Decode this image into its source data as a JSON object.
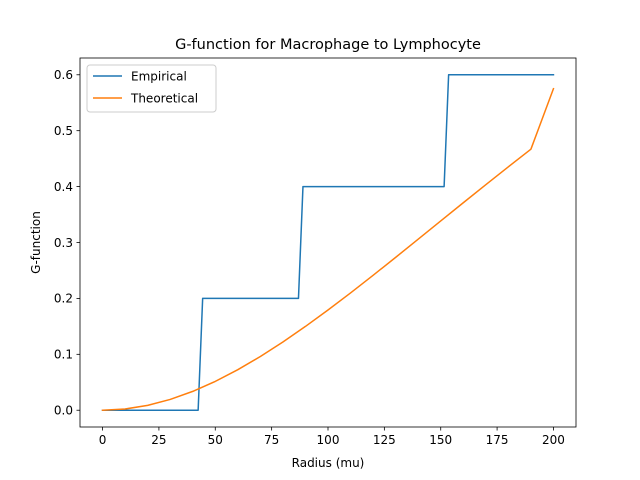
{
  "chart_data": {
    "type": "line",
    "title": "G-function for Macrophage to Lymphocyte",
    "xlabel": "Radius (mu)",
    "ylabel": "G-function",
    "xlim": [
      -10,
      210
    ],
    "ylim": [
      -0.03,
      0.63
    ],
    "xticks": [
      0,
      25,
      50,
      75,
      100,
      125,
      150,
      175,
      200
    ],
    "xtick_labels": [
      "0",
      "25",
      "50",
      "75",
      "100",
      "125",
      "150",
      "175",
      "200"
    ],
    "yticks": [
      0.0,
      0.1,
      0.2,
      0.3,
      0.4,
      0.5,
      0.6
    ],
    "ytick_labels": [
      "0.0",
      "0.1",
      "0.2",
      "0.3",
      "0.4",
      "0.5",
      "0.6"
    ],
    "grid": false,
    "legend_position": "top-left",
    "series": [
      {
        "name": "Empirical",
        "color": "#1f77b4",
        "x": [
          0,
          42.4,
          44.4,
          86.9,
          88.9,
          151.5,
          153.5,
          200
        ],
        "y": [
          0.0,
          0.0,
          0.2,
          0.2,
          0.4,
          0.4,
          0.6,
          0.6
        ]
      },
      {
        "name": "Theoretical",
        "color": "#ff7f0e",
        "x": [
          0,
          10,
          20,
          30,
          40,
          50,
          60,
          70,
          80,
          90,
          100,
          110,
          120,
          130,
          140,
          150,
          160,
          170,
          180,
          190,
          200
        ],
        "y": [
          0.0,
          0.0022,
          0.0087,
          0.0193,
          0.0337,
          0.0516,
          0.0725,
          0.0961,
          0.1221,
          0.1499,
          0.1793,
          0.2098,
          0.2413,
          0.2734,
          0.3059,
          0.3385,
          0.3711,
          0.4034,
          0.4354,
          0.4669,
          0.575
        ]
      }
    ]
  }
}
